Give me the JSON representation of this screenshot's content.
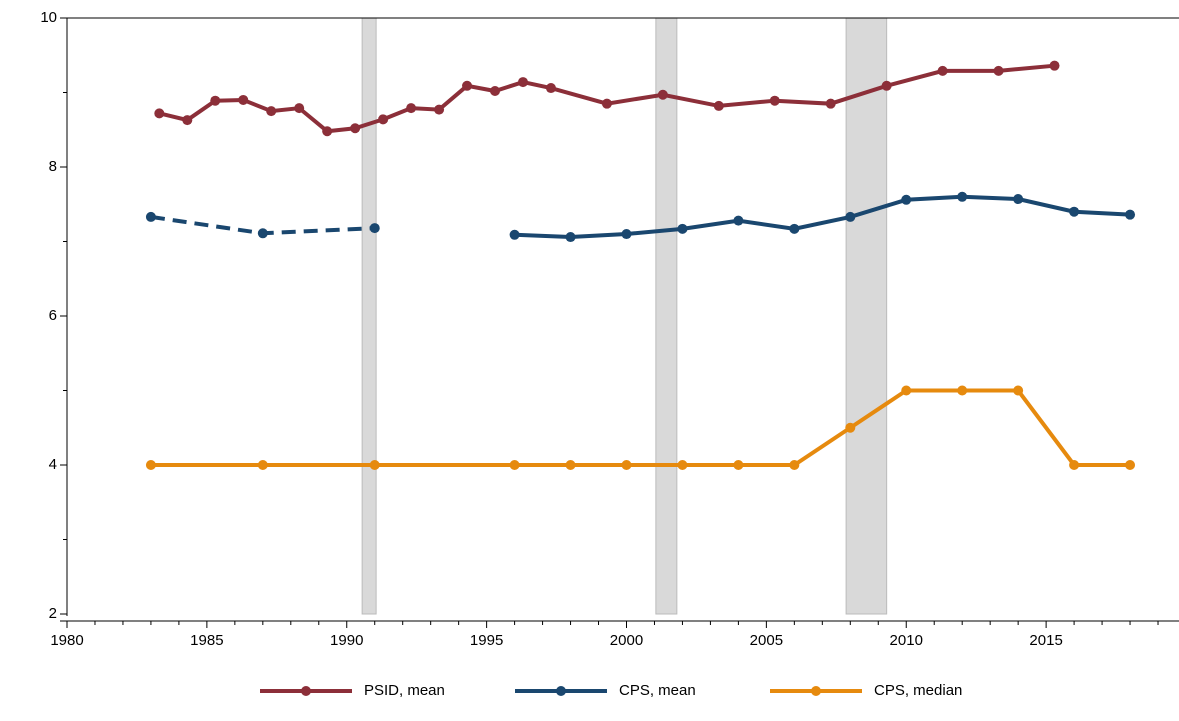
{
  "chart_data": {
    "type": "line",
    "xlim": [
      1980,
      2019.75
    ],
    "ylim": [
      2,
      10
    ],
    "xticks": [
      1980,
      1985,
      1990,
      1995,
      2000,
      2005,
      2010,
      2015
    ],
    "yticks": [
      2,
      4,
      6,
      8,
      10
    ],
    "shaded_ranges": [
      [
        1990.55,
        1991.05
      ],
      [
        2001.05,
        2001.8
      ],
      [
        2007.85,
        2009.3
      ]
    ],
    "shade_color": "#d9d9d9",
    "legend": "bottom",
    "series": [
      {
        "name": "PSID, mean",
        "color": "#8c2f39",
        "x": [
          1983.3,
          1984.3,
          1985.3,
          1986.3,
          1987.3,
          1988.3,
          1989.3,
          1990.3,
          1991.3,
          1992.3,
          1993.3,
          1994.3,
          1995.3,
          1996.3,
          1997.3,
          1999.3,
          2001.3,
          2003.3,
          2005.3,
          2007.3,
          2009.3,
          2011.3,
          2013.3,
          2015.3
        ],
        "values": [
          8.72,
          8.63,
          8.89,
          8.9,
          8.75,
          8.79,
          8.48,
          8.52,
          8.64,
          8.79,
          8.77,
          9.09,
          9.02,
          9.14,
          9.06,
          8.85,
          8.97,
          8.82,
          8.89,
          8.85,
          9.09,
          9.29,
          9.29,
          9.36
        ]
      },
      {
        "name": "CPS, mean",
        "color": "#1a476f",
        "line_styles": [
          "dashed",
          "solid"
        ],
        "x": [
          1983,
          1987,
          1991,
          null,
          1996,
          1998,
          2000,
          2002,
          2004,
          2006,
          2008,
          2010,
          2012,
          2014,
          2016,
          2018
        ],
        "values": [
          7.33,
          7.11,
          7.18,
          null,
          7.09,
          7.06,
          7.1,
          7.17,
          7.28,
          7.17,
          7.33,
          7.56,
          7.6,
          7.57,
          7.4,
          7.36
        ]
      },
      {
        "name": "CPS, median",
        "color": "#e68a0e",
        "x": [
          1983,
          1987,
          1991,
          1996,
          1998,
          2000,
          2002,
          2004,
          2006,
          2008,
          2010,
          2012,
          2014,
          2016,
          2018
        ],
        "values": [
          4,
          4,
          4,
          4,
          4,
          4,
          4,
          4,
          4,
          4.5,
          5,
          5,
          5,
          4,
          4
        ]
      }
    ]
  }
}
